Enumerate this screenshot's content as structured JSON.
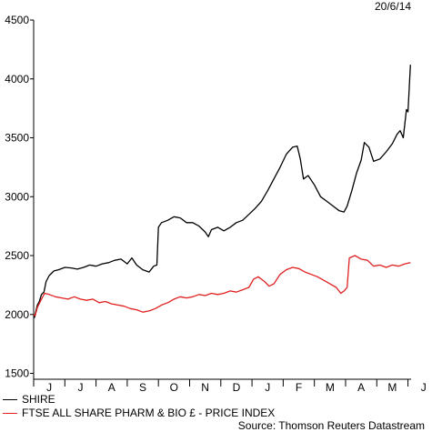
{
  "chart_data": {
    "type": "line",
    "date_label": "20/6/14",
    "yticks": [
      1500,
      2000,
      2500,
      3000,
      3500,
      4000,
      4500
    ],
    "ylim": [
      1450,
      4500
    ],
    "months": [
      "J",
      "J",
      "A",
      "S",
      "O",
      "N",
      "D",
      "J",
      "F",
      "M",
      "A",
      "M",
      "J"
    ],
    "grid": false,
    "legend_position": "bottom-left",
    "source": "Source: Thomson Reuters Datastream",
    "series": [
      {
        "name": "SHIRE",
        "color": "#000000",
        "points": [
          [
            0,
            2000
          ],
          [
            0.03,
            1975
          ],
          [
            0.07,
            2025
          ],
          [
            0.12,
            2080
          ],
          [
            0.18,
            2110
          ],
          [
            0.25,
            2170
          ],
          [
            0.33,
            2190
          ],
          [
            0.4,
            2280
          ],
          [
            0.5,
            2330
          ],
          [
            0.65,
            2370
          ],
          [
            0.8,
            2380
          ],
          [
            1.0,
            2400
          ],
          [
            1.2,
            2395
          ],
          [
            1.4,
            2385
          ],
          [
            1.6,
            2400
          ],
          [
            1.8,
            2420
          ],
          [
            2.0,
            2410
          ],
          [
            2.2,
            2430
          ],
          [
            2.4,
            2440
          ],
          [
            2.6,
            2460
          ],
          [
            2.8,
            2470
          ],
          [
            3.0,
            2430
          ],
          [
            3.15,
            2480
          ],
          [
            3.3,
            2420
          ],
          [
            3.5,
            2380
          ],
          [
            3.7,
            2360
          ],
          [
            3.85,
            2410
          ],
          [
            3.95,
            2420
          ],
          [
            4.0,
            2740
          ],
          [
            4.1,
            2780
          ],
          [
            4.3,
            2800
          ],
          [
            4.5,
            2830
          ],
          [
            4.7,
            2820
          ],
          [
            4.9,
            2780
          ],
          [
            5.1,
            2780
          ],
          [
            5.3,
            2750
          ],
          [
            5.5,
            2700
          ],
          [
            5.6,
            2660
          ],
          [
            5.7,
            2720
          ],
          [
            5.9,
            2740
          ],
          [
            6.1,
            2710
          ],
          [
            6.3,
            2740
          ],
          [
            6.5,
            2780
          ],
          [
            6.7,
            2800
          ],
          [
            6.9,
            2850
          ],
          [
            7.1,
            2900
          ],
          [
            7.3,
            2960
          ],
          [
            7.5,
            3050
          ],
          [
            7.7,
            3150
          ],
          [
            7.9,
            3250
          ],
          [
            8.1,
            3360
          ],
          [
            8.3,
            3420
          ],
          [
            8.45,
            3430
          ],
          [
            8.55,
            3320
          ],
          [
            8.65,
            3150
          ],
          [
            8.8,
            3180
          ],
          [
            9.0,
            3100
          ],
          [
            9.2,
            3000
          ],
          [
            9.4,
            2960
          ],
          [
            9.6,
            2920
          ],
          [
            9.8,
            2880
          ],
          [
            9.95,
            2870
          ],
          [
            10.05,
            2920
          ],
          [
            10.2,
            3050
          ],
          [
            10.35,
            3200
          ],
          [
            10.5,
            3310
          ],
          [
            10.6,
            3460
          ],
          [
            10.75,
            3420
          ],
          [
            10.9,
            3300
          ],
          [
            11.1,
            3320
          ],
          [
            11.3,
            3380
          ],
          [
            11.5,
            3450
          ],
          [
            11.65,
            3530
          ],
          [
            11.75,
            3560
          ],
          [
            11.85,
            3500
          ],
          [
            11.95,
            3740
          ],
          [
            12.0,
            3720
          ],
          [
            12.08,
            4120
          ]
        ]
      },
      {
        "name": "FTSE ALL SHARE PHARM & BIO £ - PRICE INDEX",
        "color": "#e02020",
        "points": [
          [
            0,
            2000
          ],
          [
            0.05,
            1990
          ],
          [
            0.12,
            2060
          ],
          [
            0.25,
            2130
          ],
          [
            0.35,
            2180
          ],
          [
            0.5,
            2170
          ],
          [
            0.7,
            2150
          ],
          [
            0.9,
            2140
          ],
          [
            1.1,
            2130
          ],
          [
            1.3,
            2150
          ],
          [
            1.5,
            2130
          ],
          [
            1.7,
            2120
          ],
          [
            1.9,
            2130
          ],
          [
            2.1,
            2100
          ],
          [
            2.3,
            2110
          ],
          [
            2.5,
            2090
          ],
          [
            2.7,
            2080
          ],
          [
            2.9,
            2070
          ],
          [
            3.1,
            2050
          ],
          [
            3.3,
            2040
          ],
          [
            3.5,
            2020
          ],
          [
            3.7,
            2030
          ],
          [
            3.9,
            2050
          ],
          [
            4.1,
            2080
          ],
          [
            4.3,
            2100
          ],
          [
            4.5,
            2130
          ],
          [
            4.7,
            2150
          ],
          [
            4.9,
            2140
          ],
          [
            5.1,
            2150
          ],
          [
            5.3,
            2170
          ],
          [
            5.5,
            2160
          ],
          [
            5.7,
            2180
          ],
          [
            5.9,
            2170
          ],
          [
            6.1,
            2180
          ],
          [
            6.3,
            2200
          ],
          [
            6.5,
            2190
          ],
          [
            6.7,
            2210
          ],
          [
            6.9,
            2230
          ],
          [
            7.05,
            2300
          ],
          [
            7.2,
            2320
          ],
          [
            7.4,
            2280
          ],
          [
            7.55,
            2240
          ],
          [
            7.7,
            2260
          ],
          [
            7.9,
            2340
          ],
          [
            8.1,
            2380
          ],
          [
            8.3,
            2400
          ],
          [
            8.5,
            2390
          ],
          [
            8.7,
            2360
          ],
          [
            8.9,
            2340
          ],
          [
            9.1,
            2320
          ],
          [
            9.3,
            2290
          ],
          [
            9.5,
            2260
          ],
          [
            9.7,
            2230
          ],
          [
            9.85,
            2180
          ],
          [
            9.95,
            2200
          ],
          [
            10.05,
            2230
          ],
          [
            10.12,
            2480
          ],
          [
            10.3,
            2500
          ],
          [
            10.5,
            2470
          ],
          [
            10.7,
            2460
          ],
          [
            10.9,
            2410
          ],
          [
            11.1,
            2420
          ],
          [
            11.3,
            2400
          ],
          [
            11.5,
            2420
          ],
          [
            11.7,
            2410
          ],
          [
            11.9,
            2430
          ],
          [
            12.08,
            2440
          ]
        ]
      }
    ]
  }
}
